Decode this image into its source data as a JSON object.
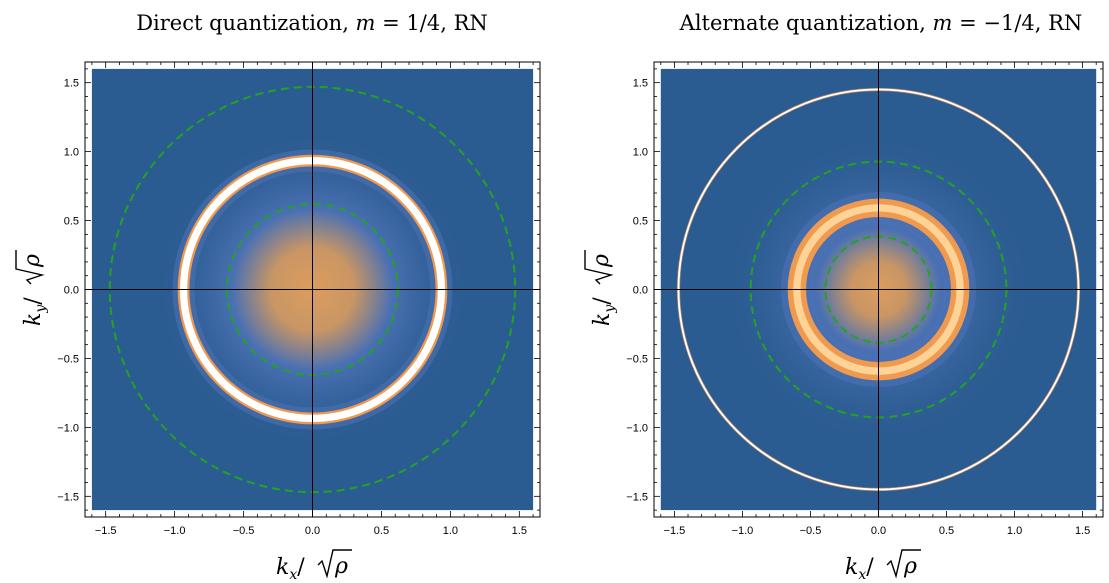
{
  "chart_data": [
    {
      "type": "heatmap",
      "title": {
        "prefix": "Direct quantization, ",
        "var": "m",
        "mid": " = ",
        "value": "1/4",
        "suffix": ", RN"
      },
      "xlabel": {
        "var": "k",
        "sub": "x",
        "div": "/ ",
        "sqrt_arg": "ρ"
      },
      "ylabel": {
        "var": "k",
        "sub": "y",
        "div": "/ ",
        "sqrt_arg": "ρ"
      },
      "xlim": [
        -1.65,
        1.65
      ],
      "ylim": [
        -1.65,
        1.65
      ],
      "extent": [
        -1.6,
        1.6
      ],
      "xticks": [
        -1.5,
        -1.0,
        -0.5,
        0.0,
        0.5,
        1.0,
        1.5
      ],
      "yticks": [
        -1.5,
        -1.0,
        -0.5,
        0.0,
        0.5,
        1.0,
        1.5
      ],
      "xtick_labels": [
        "−1.5",
        "−1.0",
        "−0.5",
        "0.0",
        "0.5",
        "1.0",
        "1.5"
      ],
      "ytick_labels": [
        "−1.5",
        "−1.0",
        "−0.5",
        "0.0",
        "0.5",
        "1.0",
        "1.5"
      ],
      "minor_tick_step": 0.1,
      "dashed_circle_radii": [
        0.62,
        1.47
      ],
      "bright_ring": {
        "radius": 0.935,
        "width": 0.05
      },
      "glow": {
        "inner_radius": 0.3,
        "outer_radius": 0.58
      },
      "colors": {
        "background": "#2b5c91",
        "mid": "#4e73b7",
        "warm": "#e5a05c",
        "ring_edge": "#ef9a4e",
        "ring_core": "#ffffff",
        "dashed": "#22a322",
        "axes": "#000000"
      }
    },
    {
      "type": "heatmap",
      "title": {
        "prefix": "Alternate quantization, ",
        "var": "m",
        "mid": " = ",
        "value": "−1/4",
        "suffix": ", RN"
      },
      "xlabel": {
        "var": "k",
        "sub": "x",
        "div": "/ ",
        "sqrt_arg": "ρ"
      },
      "ylabel": {
        "var": "k",
        "sub": "y",
        "div": "/ ",
        "sqrt_arg": "ρ"
      },
      "xlim": [
        -1.65,
        1.65
      ],
      "ylim": [
        -1.65,
        1.65
      ],
      "extent": [
        -1.6,
        1.6
      ],
      "xticks": [
        -1.5,
        -1.0,
        -0.5,
        0.0,
        0.5,
        1.0,
        1.5
      ],
      "yticks": [
        -1.5,
        -1.0,
        -0.5,
        0.0,
        0.5,
        1.0,
        1.5
      ],
      "xtick_labels": [
        "−1.5",
        "−1.0",
        "−0.5",
        "0.0",
        "0.5",
        "1.0",
        "1.5"
      ],
      "ytick_labels": [
        "−1.5",
        "−1.0",
        "−0.5",
        "0.0",
        "0.5",
        "1.0",
        "1.5"
      ],
      "minor_tick_step": 0.1,
      "dashed_circle_radii": [
        0.39,
        0.94
      ],
      "thin_ring": {
        "radius": 1.47,
        "width": 0.012
      },
      "warm_ring": {
        "radius": 0.6,
        "width": 0.09
      },
      "glow": {
        "inner_radius": 0.2,
        "outer_radius": 0.45
      },
      "colors": {
        "background": "#2b5c91",
        "mid": "#4e73b7",
        "warm": "#e5a05c",
        "ring_edge": "#ef9a4e",
        "ring_core": "#ffd9a0",
        "thin_ring": "#ffffff",
        "dashed": "#22a322",
        "axes": "#000000"
      }
    }
  ]
}
